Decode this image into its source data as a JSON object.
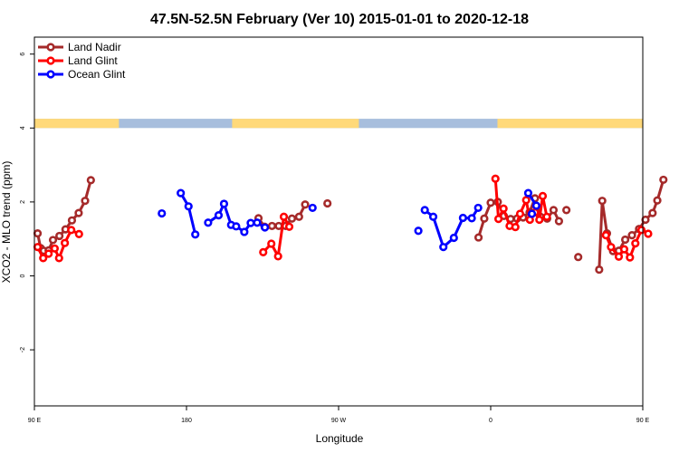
{
  "chart_data": {
    "type": "line",
    "title": "47.5N-52.5N February (Ver 10)   2015-01-01 to 2020-12-18",
    "xlabel": "Longitude",
    "ylabel": "XCO2 - MLO trend (ppm)",
    "xlim": [
      90,
      450
    ],
    "ylim": [
      -4,
      6.5
    ],
    "x_ticks": [
      {
        "value": 90,
        "label": "90 E"
      },
      {
        "value": 180,
        "label": "180"
      },
      {
        "value": 270,
        "label": "90 W"
      },
      {
        "value": 360,
        "label": "0"
      },
      {
        "value": 450,
        "label": "90 E"
      },
      {
        "value": 540,
        "label": "180"
      }
    ],
    "y_ticks": [
      -2,
      0,
      2,
      4,
      6
    ],
    "legend_position": "top-left",
    "land_sea_band": {
      "y_range": [
        4.0,
        4.25
      ],
      "land_color": "#FFD97A",
      "sea_color": "#A7BEDD",
      "land_segments": [
        [
          90,
          140
        ],
        [
          207,
          282
        ],
        [
          364,
          458
        ],
        [
          505,
          540
        ]
      ]
    },
    "series": [
      {
        "name": "Land Nadir",
        "color": "#A52A2A",
        "segments": [
          [
            [
              91.9,
              1.15
            ],
            [
              93.7,
              0.75
            ],
            [
              95.5,
              0.68
            ],
            [
              98.4,
              0.69
            ],
            [
              101.0,
              0.97
            ],
            [
              104.8,
              1.08
            ],
            [
              108.4,
              1.26
            ],
            [
              112.2,
              1.5
            ],
            [
              116.2,
              1.7
            ],
            [
              120.0,
              2.03
            ],
            [
              123.4,
              2.59
            ]
          ],
          [
            [
              222.6,
              1.56
            ],
            [
              226.2,
              1.33
            ],
            [
              230.6,
              1.35
            ],
            [
              234.6,
              1.35
            ],
            [
              238.6,
              1.35
            ],
            [
              242.4,
              1.55
            ],
            [
              246.6,
              1.6
            ],
            [
              250.2,
              1.93
            ]
          ],
          [
            [
              263.4,
              1.96
            ]
          ],
          [
            [
              352.8,
              1.04
            ],
            [
              356.2,
              1.55
            ],
            [
              360.0,
              1.98
            ],
            [
              364.2,
              2.0
            ],
            [
              367.8,
              1.62
            ],
            [
              371.8,
              1.54
            ],
            [
              375.6,
              1.55
            ],
            [
              379.2,
              1.58
            ],
            [
              383.0,
              1.72
            ],
            [
              386.2,
              2.1
            ],
            [
              389.4,
              1.6
            ],
            [
              393.4,
              1.55
            ],
            [
              397.2,
              1.78
            ],
            [
              400.4,
              1.48
            ]
          ],
          [
            [
              404.8,
              1.78
            ]
          ],
          [
            [
              411.8,
              0.51
            ]
          ],
          [
            [
              424.2,
              0.17
            ],
            [
              426.0,
              2.03
            ],
            [
              428.8,
              1.15
            ],
            [
              432.4,
              0.67
            ],
            [
              435.8,
              0.68
            ],
            [
              439.6,
              0.98
            ],
            [
              443.6,
              1.1
            ],
            [
              447.8,
              1.27
            ],
            [
              451.6,
              1.52
            ],
            [
              455.8,
              1.7
            ],
            [
              458.6,
              2.04
            ],
            [
              462.2,
              2.6
            ]
          ]
        ]
      },
      {
        "name": "Land Glint",
        "color": "#FF0000",
        "segments": [
          [
            [
              91.9,
              0.78
            ],
            [
              95.2,
              0.48
            ],
            [
              98.4,
              0.6
            ],
            [
              102.0,
              0.74
            ],
            [
              104.6,
              0.48
            ],
            [
              108.0,
              0.89
            ],
            [
              111.8,
              1.24
            ],
            [
              116.4,
              1.13
            ]
          ],
          [
            [
              225.4,
              0.64
            ],
            [
              230.2,
              0.87
            ],
            [
              234.2,
              0.53
            ],
            [
              237.6,
              1.6
            ],
            [
              240.8,
              1.33
            ]
          ],
          [
            [
              362.8,
              2.63
            ],
            [
              364.6,
              1.54
            ],
            [
              367.6,
              1.82
            ],
            [
              371.2,
              1.35
            ],
            [
              374.6,
              1.32
            ],
            [
              377.4,
              1.68
            ],
            [
              381.0,
              2.05
            ],
            [
              383.2,
              1.52
            ],
            [
              386.2,
              1.72
            ],
            [
              388.8,
              1.52
            ],
            [
              390.8,
              2.16
            ],
            [
              393.2,
              1.6
            ]
          ],
          [
            [
              428.2,
              1.1
            ],
            [
              431.2,
              0.78
            ],
            [
              435.8,
              0.52
            ],
            [
              439.0,
              0.72
            ],
            [
              442.4,
              0.5
            ],
            [
              445.6,
              0.88
            ],
            [
              449.2,
              1.24
            ],
            [
              453.2,
              1.14
            ]
          ]
        ]
      },
      {
        "name": "Ocean Glint",
        "color": "#0000FF",
        "segments": [
          [
            [
              165.4,
              1.69
            ]
          ],
          [
            [
              176.6,
              2.24
            ],
            [
              181.2,
              1.88
            ],
            [
              185.2,
              1.12
            ]
          ],
          [
            [
              192.8,
              1.44
            ],
            [
              199.0,
              1.64
            ],
            [
              202.2,
              1.95
            ],
            [
              206.4,
              1.38
            ],
            [
              209.4,
              1.34
            ],
            [
              214.2,
              1.19
            ],
            [
              218.0,
              1.43
            ],
            [
              221.8,
              1.44
            ],
            [
              226.4,
              1.31
            ]
          ],
          [
            [
              254.6,
              1.84
            ]
          ],
          [
            [
              317.2,
              1.22
            ]
          ],
          [
            [
              321.0,
              1.78
            ],
            [
              326.0,
              1.6
            ],
            [
              332.0,
              0.78
            ],
            [
              338.2,
              1.03
            ],
            [
              343.6,
              1.57
            ],
            [
              348.8,
              1.56
            ],
            [
              352.6,
              1.84
            ]
          ],
          [
            [
              384.4,
              1.68
            ]
          ],
          [
            [
              382.2,
              2.24
            ],
            [
              387.0,
              1.9
            ]
          ]
        ]
      }
    ]
  }
}
